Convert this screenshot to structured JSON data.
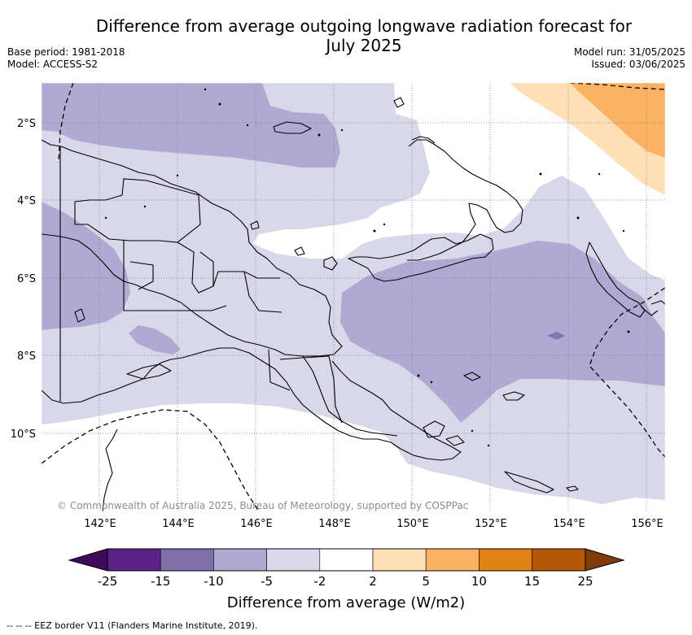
{
  "title_line1": "Difference from average outgoing longwave radiation forecast for",
  "title_line2": "July 2025",
  "base_period": "Base period: 1981-2018",
  "model": "Model: ACCESS-S2",
  "model_run": "Model run: 31/05/2025",
  "issued": "Issued: 03/06/2025",
  "copyright": "© Commonwealth of Australia 2025, Bureau of Meteorology, supported by COSPPac",
  "footer_note": "-- -- -- EEZ border V11 (Flanders Marine Institute, 2019).",
  "map": {
    "lat_labels": [
      "2°S",
      "4°S",
      "6°S",
      "8°S",
      "10°S"
    ],
    "lon_labels": [
      "142°E",
      "144°E",
      "146°E",
      "148°E",
      "150°E",
      "152°E",
      "154°E",
      "156°E"
    ],
    "colors": {
      "neg_light": "#d8d8ea",
      "neg_mid": "#b0aad3",
      "neg_strong": "#8074b2",
      "pos_light": "#fde0b6",
      "pos_mid": "#fbb262"
    }
  },
  "colorbar": {
    "title": "Difference from average (W/m2)",
    "tick_labels": [
      "-25",
      "-15",
      "-10",
      "-5",
      "-2",
      "2",
      "5",
      "10",
      "15",
      "25"
    ],
    "colors": [
      "#3f0a57",
      "#5a2287",
      "#7f6fab",
      "#b0aad3",
      "#d8d8ea",
      "#ffffff",
      "#fde0b6",
      "#fbb262",
      "#e08214",
      "#b35806",
      "#7f3b08"
    ]
  }
}
